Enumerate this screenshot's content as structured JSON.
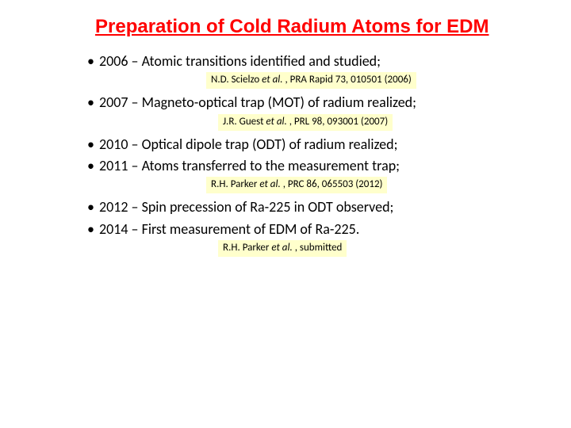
{
  "title": "Preparation of Cold Radium Atoms for EDM",
  "title_color": "#ff0000",
  "title_fontsize": 24,
  "background_color": "#ffffff",
  "citation_bg": "#ffffcc",
  "bullet_fontsize": 18,
  "citation_fontsize": 13,
  "bullets": {
    "b1": "2006 – Atomic transitions identified and studied;",
    "b2": "2007 – Magneto-optical trap (MOT) of radium realized;",
    "b3": "2010 – Optical dipole trap (ODT) of radium realized;",
    "b4": "2011 – Atoms transferred to the measurement trap;",
    "b5": "2012 – Spin precession of Ra-225 in ODT observed;",
    "b6": "2014 – First measurement of EDM of Ra-225."
  },
  "citations": {
    "c1_author": "N.D. Scielzo ",
    "c1_etal": "et al.",
    "c1_rest": " ,  PRA Rapid 73, 010501 (2006)",
    "c2_author": "J.R. Guest ",
    "c2_etal": "et al.",
    "c2_rest": " , PRL 98, 093001 (2007)",
    "c3_author": "R.H. Parker ",
    "c3_etal": "et al.",
    "c3_rest": " , PRC 86, 065503 (2012)",
    "c4_author": "R.H. Parker ",
    "c4_etal": "et al.",
    "c4_rest": " , submitted"
  }
}
